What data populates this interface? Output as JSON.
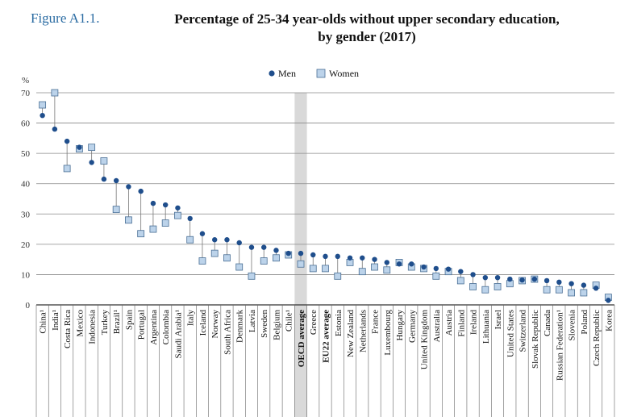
{
  "figure": {
    "label": "Figure A1.1.",
    "title_line1": "Percentage of 25-34 year-olds without upper secondary education,",
    "title_line2": "by gender (2017)"
  },
  "chart_data": {
    "type": "scatter",
    "ylabel": "%",
    "ylim": [
      0,
      70
    ],
    "yticks": [
      0,
      10,
      20,
      30,
      40,
      50,
      60,
      70
    ],
    "grid": true,
    "legend_placement": "top-center",
    "colors": {
      "men": "#1f4e8c",
      "women": "#bcd3ea",
      "women_edge": "#4a6f95",
      "highlight": "#d9d9d9"
    },
    "categories": [
      "China¹",
      "India¹",
      "Costa Rica",
      "Mexico",
      "Indonesia",
      "Turkey",
      "Brazil¹",
      "Spain",
      "Portugal",
      "Argentina",
      "Colombia",
      "Saudi Arabia¹",
      "Italy",
      "Iceland",
      "Norway",
      "South Africa",
      "Denmark",
      "Latvia",
      "Sweden",
      "Belgium",
      "Chile¹",
      "OECD average",
      "Greece",
      "EU22 average",
      "Estonia",
      "New Zealand",
      "Netherlands",
      "France",
      "Luxembourg",
      "Hungary",
      "Germany",
      "United Kingdom",
      "Australia",
      "Austria",
      "Finland",
      "Ireland",
      "Lithuania",
      "Israel",
      "United States",
      "Switzerland",
      "Slovak Republic",
      "Canada",
      "Russian Federation¹",
      "Slovenia",
      "Poland",
      "Czech Republic",
      "Korea"
    ],
    "highlight_category": "OECD average",
    "bold_categories": [
      "OECD average",
      "EU22 average"
    ],
    "series": [
      {
        "name": "Men",
        "marker": "circle",
        "values": [
          62.5,
          58,
          54,
          52,
          47,
          41.5,
          41,
          39,
          37.5,
          33.5,
          33,
          32,
          28.5,
          23.5,
          21.5,
          21.5,
          20.5,
          19,
          19,
          18,
          17,
          17,
          16.5,
          16,
          16,
          15.5,
          15.5,
          15,
          14,
          13.5,
          13.5,
          12.5,
          12,
          11.8,
          11,
          10,
          9,
          9,
          8.5,
          8.2,
          8.5,
          8,
          7.5,
          7,
          6.5,
          5.5,
          1.5
        ]
      },
      {
        "name": "Women",
        "marker": "square",
        "values": [
          66,
          70,
          45,
          51.5,
          52,
          47.5,
          31.5,
          28,
          23.5,
          25,
          27,
          29.5,
          21.5,
          14.5,
          17,
          15.5,
          12.5,
          9.5,
          14.5,
          15.5,
          16.5,
          13.5,
          12,
          12,
          9.5,
          14,
          11,
          12.5,
          11.5,
          14,
          12.5,
          12,
          9.5,
          11,
          8,
          6,
          5,
          6,
          7,
          8,
          8.5,
          5,
          5,
          4,
          4,
          6.5,
          2.5
        ]
      }
    ]
  }
}
